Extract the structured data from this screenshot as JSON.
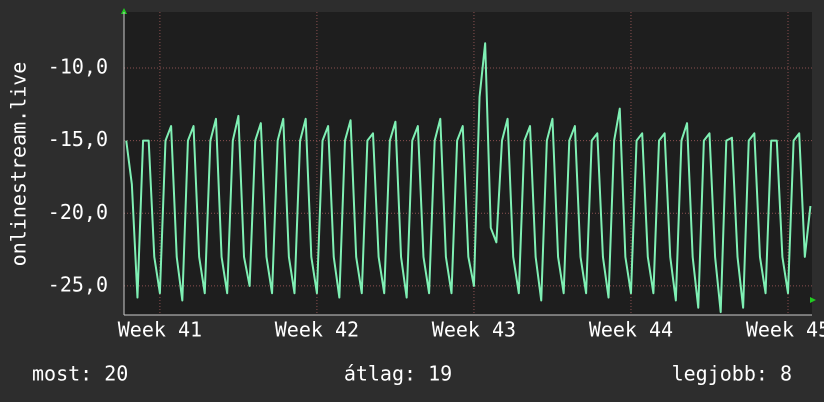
{
  "chart_data": {
    "type": "line",
    "y_label": "onlinestream.live",
    "x": [
      -1.5,
      -1.25,
      -1,
      -0.75,
      -0.5,
      -0.25,
      0,
      0.25,
      0.5,
      0.75,
      1,
      1.25,
      1.5,
      1.75,
      2,
      2.25,
      2.5,
      2.75,
      3,
      3.25,
      3.5,
      3.75,
      4,
      4.25,
      4.5,
      4.75,
      5,
      5.25,
      5.5,
      5.75,
      6,
      6.25,
      6.5,
      6.75,
      7,
      7.25,
      7.5,
      7.75,
      8,
      8.25,
      8.5,
      8.75,
      9,
      9.25,
      9.5,
      9.75,
      10,
      10.25,
      10.5,
      10.75,
      11,
      11.25,
      11.5,
      11.75,
      12,
      12.25,
      12.5,
      12.75,
      13,
      13.25,
      13.5,
      13.75,
      14,
      14.25,
      14.5,
      14.75,
      15,
      15.25,
      15.5,
      15.75,
      16,
      16.25,
      16.5,
      16.75,
      17,
      17.25,
      17.5,
      17.75,
      18,
      18.25,
      18.5,
      18.75,
      19,
      19.25,
      19.5,
      19.75,
      20,
      20.25,
      20.5,
      20.75,
      21,
      21.25,
      21.5,
      21.75,
      22,
      22.25,
      22.5,
      22.75,
      23,
      23.25,
      23.5,
      23.75,
      24,
      24.25,
      24.5,
      24.75,
      25,
      25.25,
      25.5,
      25.75,
      26,
      26.25,
      26.5,
      26.75,
      27,
      27.25,
      27.5,
      27.75,
      28,
      28.25,
      28.5,
      28.75,
      29
    ],
    "series": [
      {
        "name": "onlinestream.live",
        "color": "#7ff0b4",
        "values": [
          -15,
          -18,
          -25.8,
          -15,
          -15,
          -23,
          -25.5,
          -15,
          -14,
          -23,
          -26,
          -15,
          -14,
          -23,
          -25.5,
          -15,
          -13.5,
          -23,
          -25.5,
          -15,
          -13.3,
          -23,
          -25,
          -15,
          -13.8,
          -23,
          -25.5,
          -15,
          -13.5,
          -23,
          -25.5,
          -15,
          -13.5,
          -23,
          -25.5,
          -15,
          -14,
          -23,
          -25.8,
          -15,
          -13.6,
          -23,
          -25.5,
          -15,
          -14.5,
          -23,
          -25.5,
          -15,
          -13.7,
          -23,
          -25.8,
          -15,
          -14,
          -23,
          -25.5,
          -15,
          -13.5,
          -23,
          -25.5,
          -15,
          -14,
          -23,
          -25,
          -12,
          -8.3,
          -21,
          -22,
          -15,
          -13.5,
          -23,
          -25.5,
          -15,
          -14,
          -23,
          -26,
          -15,
          -13.5,
          -23,
          -25.5,
          -15,
          -14,
          -23,
          -25.5,
          -15,
          -14.5,
          -23,
          -25.8,
          -15,
          -12.8,
          -23,
          -25.5,
          -15,
          -14.5,
          -23,
          -25.5,
          -15,
          -14.5,
          -23,
          -26,
          -15,
          -13.8,
          -23,
          -26.5,
          -15,
          -14.5,
          -23,
          -26.8,
          -15,
          -14.8,
          -23,
          -26.5,
          -15,
          -14.5,
          -23,
          -25.5,
          -15,
          -15,
          -23,
          -25.5,
          -15,
          -14.5,
          -23,
          -19.5
        ]
      }
    ],
    "xlim": [
      -1.6,
      29.07
    ],
    "xticks": [
      {
        "value": 0,
        "label": "Week 41"
      },
      {
        "value": 7,
        "label": "Week 42"
      },
      {
        "value": 14,
        "label": "Week 43"
      },
      {
        "value": 21,
        "label": "Week 44"
      },
      {
        "value": 28,
        "label": "Week 45"
      }
    ],
    "ylim": [
      -27,
      -6.15
    ],
    "yticks": [
      {
        "value": -25,
        "label": "-25,0"
      },
      {
        "value": -20,
        "label": "-20,0"
      },
      {
        "value": -15,
        "label": "-15,0"
      },
      {
        "value": -10,
        "label": "-10,0"
      }
    ],
    "grid": true,
    "stats": [
      "most: 20",
      "átlag: 19",
      "legjobb: 8"
    ]
  }
}
